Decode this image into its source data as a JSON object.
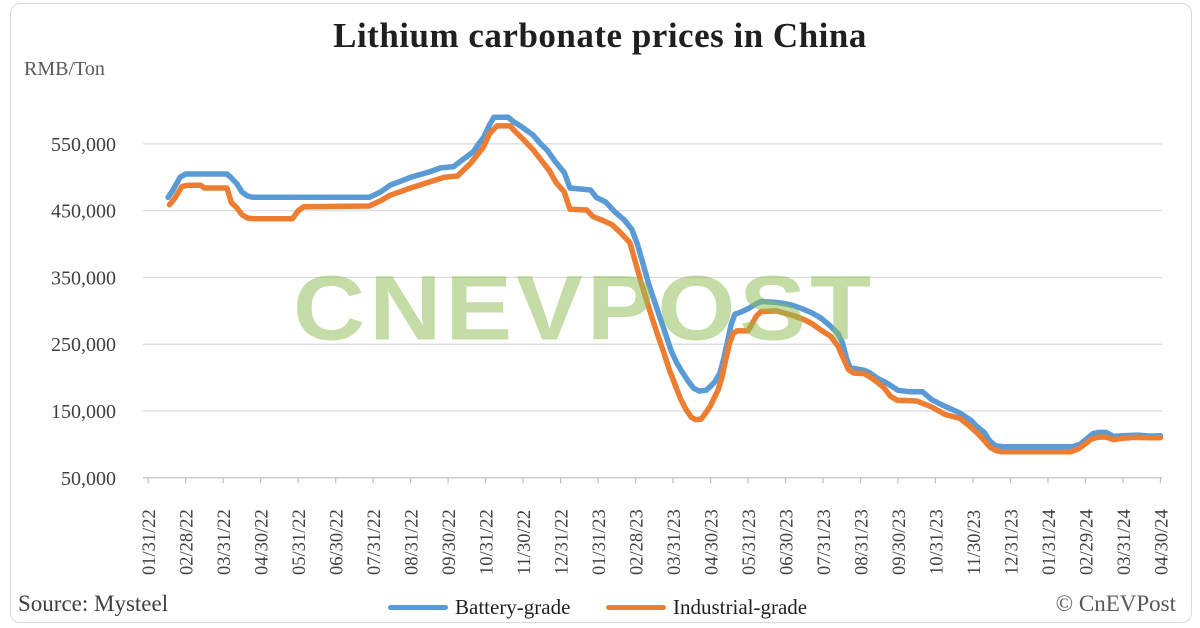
{
  "title": "Lithium carbonate prices in China",
  "unit_label": "RMB/Ton",
  "source_text": "Source: Mysteel",
  "copyright_text": "© CnEVPost",
  "watermark_text": "CNEVPOST",
  "colors": {
    "battery": "#5B9BD5",
    "industrial": "#ED7D31",
    "watermark": "#8FBF55",
    "grid": "#D9D9D9",
    "axis": "#BFBFBF",
    "tick_label": "#404040",
    "title": "#1F1F1F",
    "muted": "#595959"
  },
  "chart_data": {
    "type": "line",
    "title": "Lithium carbonate prices in China",
    "xlabel": "",
    "ylabel": "RMB/Ton",
    "grid": "horizontal",
    "legend_position": "bottom",
    "ylim": [
      50000,
      600000
    ],
    "y_tick_values": [
      550000,
      450000,
      350000,
      250000,
      150000,
      50000
    ],
    "y_tick_labels": [
      "550,000",
      "450,000",
      "350,000",
      "250,000",
      "150,000",
      "50,000"
    ],
    "x_tick_labels": [
      "01/31/22",
      "02/28/22",
      "03/31/22",
      "04/30/22",
      "05/31/22",
      "06/30/22",
      "07/31/22",
      "08/31/22",
      "09/30/22",
      "10/31/22",
      "11/30/22",
      "12/31/22",
      "01/31/23",
      "02/28/23",
      "03/31/23",
      "04/30/23",
      "05/31/23",
      "06/30/23",
      "07/31/23",
      "08/31/23",
      "09/30/23",
      "10/31/23",
      "11/30/23",
      "12/31/23",
      "01/31/24",
      "02/29/24",
      "03/31/24",
      "04/30/24"
    ],
    "x_unit": "months_from_first_tick",
    "series": [
      {
        "name": "Battery-grade",
        "color": "#5B9BD5",
        "points": [
          [
            0.53,
            470000
          ],
          [
            0.65,
            480000
          ],
          [
            0.85,
            500000
          ],
          [
            1.0,
            505000
          ],
          [
            2.1,
            505000
          ],
          [
            2.2,
            500000
          ],
          [
            2.37,
            490000
          ],
          [
            2.5,
            478000
          ],
          [
            2.65,
            472000
          ],
          [
            2.8,
            470000
          ],
          [
            5.9,
            470000
          ],
          [
            6.2,
            478000
          ],
          [
            6.45,
            488000
          ],
          [
            7.0,
            500000
          ],
          [
            7.5,
            508000
          ],
          [
            7.8,
            514000
          ],
          [
            8.15,
            516000
          ],
          [
            8.4,
            527000
          ],
          [
            8.67,
            538000
          ],
          [
            8.8,
            549000
          ],
          [
            8.95,
            560000
          ],
          [
            9.1,
            578000
          ],
          [
            9.22,
            590000
          ],
          [
            9.6,
            590000
          ],
          [
            9.75,
            583000
          ],
          [
            9.95,
            576000
          ],
          [
            10.27,
            563000
          ],
          [
            10.45,
            551000
          ],
          [
            10.65,
            540000
          ],
          [
            10.85,
            524000
          ],
          [
            11.1,
            507000
          ],
          [
            11.25,
            484000
          ],
          [
            11.8,
            481000
          ],
          [
            11.95,
            470000
          ],
          [
            12.2,
            463000
          ],
          [
            12.45,
            448000
          ],
          [
            12.7,
            436000
          ],
          [
            12.9,
            422000
          ],
          [
            13.05,
            400000
          ],
          [
            13.2,
            370000
          ],
          [
            13.35,
            340000
          ],
          [
            13.5,
            315000
          ],
          [
            13.65,
            290000
          ],
          [
            13.8,
            265000
          ],
          [
            13.95,
            240000
          ],
          [
            14.1,
            222000
          ],
          [
            14.25,
            208000
          ],
          [
            14.4,
            195000
          ],
          [
            14.55,
            184000
          ],
          [
            14.7,
            180000
          ],
          [
            14.88,
            181000
          ],
          [
            15.0,
            187000
          ],
          [
            15.12,
            194000
          ],
          [
            15.25,
            207000
          ],
          [
            15.35,
            228000
          ],
          [
            15.45,
            253000
          ],
          [
            15.55,
            280000
          ],
          [
            15.65,
            295000
          ],
          [
            15.8,
            298000
          ],
          [
            16.0,
            303000
          ],
          [
            16.2,
            310000
          ],
          [
            16.35,
            314000
          ],
          [
            16.7,
            313000
          ],
          [
            16.95,
            311000
          ],
          [
            17.2,
            308000
          ],
          [
            17.45,
            303000
          ],
          [
            17.7,
            297000
          ],
          [
            17.95,
            289000
          ],
          [
            18.2,
            277000
          ],
          [
            18.4,
            266000
          ],
          [
            18.52,
            252000
          ],
          [
            18.62,
            230000
          ],
          [
            18.72,
            215000
          ],
          [
            18.9,
            213000
          ],
          [
            19.1,
            211000
          ],
          [
            19.25,
            207000
          ],
          [
            19.45,
            199000
          ],
          [
            19.7,
            192000
          ],
          [
            20.0,
            181000
          ],
          [
            20.3,
            179000
          ],
          [
            20.65,
            179000
          ],
          [
            20.9,
            167000
          ],
          [
            21.25,
            157000
          ],
          [
            21.65,
            147000
          ],
          [
            21.95,
            136000
          ],
          [
            22.1,
            127000
          ],
          [
            22.3,
            118000
          ],
          [
            22.45,
            105000
          ],
          [
            22.6,
            98000
          ],
          [
            22.8,
            96500
          ],
          [
            24.65,
            96500
          ],
          [
            24.85,
            100000
          ],
          [
            25.05,
            109000
          ],
          [
            25.2,
            116000
          ],
          [
            25.35,
            118000
          ],
          [
            25.55,
            118000
          ],
          [
            25.75,
            112000
          ],
          [
            26.0,
            113000
          ],
          [
            26.4,
            114000
          ],
          [
            26.7,
            112500
          ],
          [
            27.0,
            113000
          ]
        ]
      },
      {
        "name": "Industrial-grade",
        "color": "#ED7D31",
        "points": [
          [
            0.57,
            459000
          ],
          [
            0.7,
            468000
          ],
          [
            0.9,
            486000
          ],
          [
            1.05,
            488000
          ],
          [
            1.4,
            488000
          ],
          [
            1.5,
            484000
          ],
          [
            2.1,
            484000
          ],
          [
            2.22,
            462000
          ],
          [
            2.37,
            454000
          ],
          [
            2.5,
            444000
          ],
          [
            2.65,
            439000
          ],
          [
            2.8,
            438000
          ],
          [
            3.85,
            438000
          ],
          [
            4.0,
            450000
          ],
          [
            4.15,
            456000
          ],
          [
            5.9,
            457000
          ],
          [
            6.2,
            465000
          ],
          [
            6.45,
            473000
          ],
          [
            7.0,
            484000
          ],
          [
            7.5,
            493000
          ],
          [
            7.9,
            500000
          ],
          [
            8.25,
            502000
          ],
          [
            8.6,
            521000
          ],
          [
            8.8,
            535000
          ],
          [
            8.95,
            546000
          ],
          [
            9.1,
            565000
          ],
          [
            9.3,
            577000
          ],
          [
            9.65,
            577000
          ],
          [
            9.78,
            569000
          ],
          [
            10.0,
            557000
          ],
          [
            10.27,
            541000
          ],
          [
            10.55,
            521000
          ],
          [
            10.7,
            510000
          ],
          [
            10.88,
            492000
          ],
          [
            11.1,
            478000
          ],
          [
            11.25,
            452000
          ],
          [
            11.7,
            451000
          ],
          [
            11.87,
            441000
          ],
          [
            12.1,
            436000
          ],
          [
            12.37,
            429000
          ],
          [
            12.6,
            417000
          ],
          [
            12.85,
            402000
          ],
          [
            13.0,
            372000
          ],
          [
            13.15,
            342000
          ],
          [
            13.3,
            315000
          ],
          [
            13.45,
            288000
          ],
          [
            13.6,
            262000
          ],
          [
            13.75,
            238000
          ],
          [
            13.9,
            212000
          ],
          [
            14.05,
            190000
          ],
          [
            14.2,
            168000
          ],
          [
            14.35,
            152000
          ],
          [
            14.48,
            141000
          ],
          [
            14.6,
            137000
          ],
          [
            14.75,
            138000
          ],
          [
            14.88,
            148000
          ],
          [
            15.0,
            158000
          ],
          [
            15.1,
            170000
          ],
          [
            15.2,
            181000
          ],
          [
            15.3,
            200000
          ],
          [
            15.4,
            225000
          ],
          [
            15.5,
            250000
          ],
          [
            15.6,
            266000
          ],
          [
            15.7,
            270000
          ],
          [
            16.0,
            270000
          ],
          [
            16.12,
            282000
          ],
          [
            16.22,
            292000
          ],
          [
            16.35,
            299000
          ],
          [
            16.75,
            300000
          ],
          [
            16.95,
            297000
          ],
          [
            17.2,
            293000
          ],
          [
            17.45,
            288000
          ],
          [
            17.7,
            281000
          ],
          [
            17.95,
            271000
          ],
          [
            18.2,
            262000
          ],
          [
            18.4,
            247000
          ],
          [
            18.55,
            228000
          ],
          [
            18.68,
            212000
          ],
          [
            18.82,
            207000
          ],
          [
            19.1,
            206000
          ],
          [
            19.28,
            200000
          ],
          [
            19.45,
            193000
          ],
          [
            19.62,
            185000
          ],
          [
            19.8,
            172000
          ],
          [
            19.98,
            166000
          ],
          [
            20.5,
            165000
          ],
          [
            20.9,
            156000
          ],
          [
            21.25,
            145000
          ],
          [
            21.65,
            139000
          ],
          [
            21.9,
            128000
          ],
          [
            22.1,
            118000
          ],
          [
            22.3,
            106000
          ],
          [
            22.45,
            96000
          ],
          [
            22.6,
            91000
          ],
          [
            22.78,
            89000
          ],
          [
            24.6,
            89000
          ],
          [
            24.8,
            93000
          ],
          [
            25.0,
            101000
          ],
          [
            25.15,
            108000
          ],
          [
            25.35,
            111000
          ],
          [
            25.55,
            111000
          ],
          [
            25.75,
            107000
          ],
          [
            25.95,
            109000
          ],
          [
            26.3,
            110500
          ],
          [
            26.7,
            110000
          ],
          [
            27.0,
            110000
          ]
        ]
      }
    ]
  }
}
